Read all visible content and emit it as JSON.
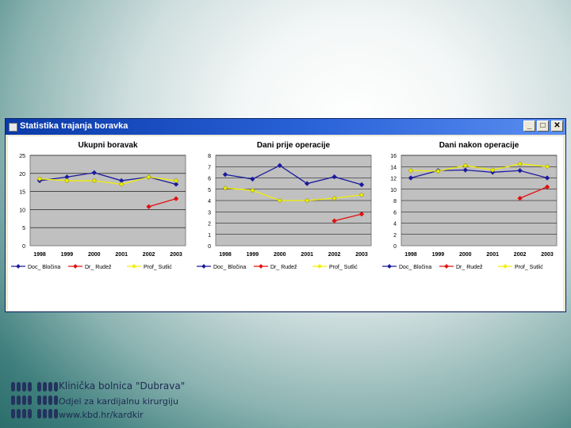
{
  "window": {
    "title": "Statistika trajanja boravka",
    "buttons": {
      "minimize": "_",
      "maximize": "□",
      "close": "✕"
    }
  },
  "footer": {
    "institution": "Klinička bolnica \"Dubrava\"",
    "department": "Odjel za kardijalnu kirurgiju",
    "website": "www.kbd.hr/kardkir"
  },
  "colors": {
    "series1": "#1a1a9c",
    "series2": "#e01010",
    "series3": "#f0f000",
    "plot_bg": "#c0c0c0"
  },
  "chart_data": [
    {
      "type": "line",
      "title": "Ukupni boravak",
      "categories": [
        "1998",
        "1999",
        "2000",
        "2001",
        "2002",
        "2003"
      ],
      "ylim": [
        0,
        25
      ],
      "yticks": [
        0,
        5,
        10,
        15,
        20,
        25
      ],
      "grid": true,
      "legend": "bottom",
      "series": [
        {
          "name": "Doc_ Bločina",
          "values": [
            18.0,
            19.0,
            20.2,
            18.0,
            19.0,
            17.0
          ]
        },
        {
          "name": "Dr_ Rudež",
          "values": [
            null,
            null,
            null,
            null,
            10.8,
            13.0
          ]
        },
        {
          "name": "Prof_ Sutlić",
          "values": [
            18.5,
            18.0,
            18.0,
            17.0,
            19.0,
            18.0
          ]
        }
      ]
    },
    {
      "type": "line",
      "title": "Dani prije operacije",
      "categories": [
        "1998",
        "1999",
        "2000",
        "2001",
        "2002",
        "2003"
      ],
      "ylim": [
        0,
        8
      ],
      "yticks": [
        0,
        1,
        2,
        3,
        4,
        5,
        6,
        7,
        8
      ],
      "grid": true,
      "legend": "bottom",
      "series": [
        {
          "name": "Doc_ Bločina",
          "values": [
            6.3,
            5.9,
            7.1,
            5.5,
            6.1,
            5.4
          ]
        },
        {
          "name": "Dr_ Rudež",
          "values": [
            null,
            null,
            null,
            null,
            2.2,
            2.8
          ]
        },
        {
          "name": "Prof_ Sutlić",
          "values": [
            5.1,
            4.9,
            4.0,
            4.0,
            4.2,
            4.5
          ]
        }
      ]
    },
    {
      "type": "line",
      "title": "Dani nakon operacije",
      "categories": [
        "1998",
        "1999",
        "2000",
        "2001",
        "2002",
        "2003"
      ],
      "ylim": [
        0,
        16
      ],
      "yticks": [
        0,
        2,
        4,
        6,
        8,
        10,
        12,
        14,
        16
      ],
      "grid": true,
      "legend": "bottom",
      "series": [
        {
          "name": "Doc_ Bločina",
          "values": [
            12.0,
            13.3,
            13.4,
            13.0,
            13.3,
            12.0
          ]
        },
        {
          "name": "Dr_ Rudež",
          "values": [
            null,
            null,
            null,
            null,
            8.4,
            10.4
          ]
        },
        {
          "name": "Prof_ Sutlić",
          "values": [
            13.3,
            13.2,
            14.2,
            13.4,
            14.5,
            14.0
          ]
        }
      ]
    }
  ]
}
